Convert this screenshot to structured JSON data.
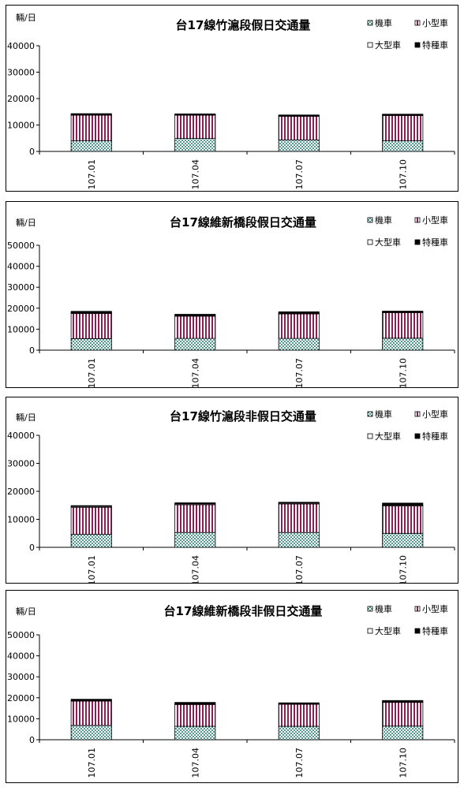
{
  "colors": {
    "motorcycle_fill": "#ffffff",
    "motorcycle_dots": "#1a7a6e",
    "small_car_fill": "#ffffff",
    "small_car_stripes": "#8a1f55",
    "large_car_fill": "#ffffff",
    "special_fill": "#000000"
  },
  "chart_data": [
    {
      "type": "bar",
      "stacked": true,
      "title": "台17線竹滬段假日交通量",
      "unit": "輛/日",
      "categories": [
        "107.01",
        "107.04",
        "107.07",
        "107.10"
      ],
      "ylim": [
        0,
        40000
      ],
      "yticks": [
        0,
        10000,
        20000,
        30000,
        40000
      ],
      "legend_position": "top-right",
      "series": [
        {
          "name": "機車",
          "values": [
            4000,
            4900,
            4300,
            4000
          ]
        },
        {
          "name": "小型車",
          "values": [
            9700,
            8800,
            9000,
            9600
          ]
        },
        {
          "name": "大型車",
          "values": [
            200,
            200,
            200,
            200
          ]
        },
        {
          "name": "特種車",
          "values": [
            400,
            300,
            300,
            300
          ]
        }
      ]
    },
    {
      "type": "bar",
      "stacked": true,
      "title": "台17線維新橋段假日交通量",
      "unit": "輛/日",
      "categories": [
        "107.01",
        "107.04",
        "107.07",
        "107.10"
      ],
      "ylim": [
        0,
        50000
      ],
      "yticks": [
        0,
        10000,
        20000,
        30000,
        40000,
        50000
      ],
      "legend_position": "top-right",
      "series": [
        {
          "name": "機車",
          "values": [
            5500,
            5600,
            5600,
            5700
          ]
        },
        {
          "name": "小型車",
          "values": [
            12000,
            10600,
            11700,
            12200
          ]
        },
        {
          "name": "大型車",
          "values": [
            300,
            300,
            300,
            300
          ]
        },
        {
          "name": "特種車",
          "values": [
            700,
            600,
            700,
            400
          ]
        }
      ]
    },
    {
      "type": "bar",
      "stacked": true,
      "title": "台17線竹滬段非假日交通量",
      "unit": "輛/日",
      "categories": [
        "107.01",
        "107.04",
        "107.07",
        "107.10"
      ],
      "ylim": [
        0,
        40000
      ],
      "yticks": [
        0,
        10000,
        20000,
        30000,
        40000
      ],
      "legend_position": "top-right",
      "series": [
        {
          "name": "機車",
          "values": [
            4600,
            5300,
            5300,
            5000
          ]
        },
        {
          "name": "小型車",
          "values": [
            9700,
            9900,
            10200,
            9800
          ]
        },
        {
          "name": "大型車",
          "values": [
            300,
            300,
            300,
            300
          ]
        },
        {
          "name": "特種車",
          "values": [
            300,
            400,
            300,
            700
          ]
        }
      ]
    },
    {
      "type": "bar",
      "stacked": true,
      "title": "台17線維新橋段非假日交通量",
      "unit": "輛/日",
      "categories": [
        "107.01",
        "107.04",
        "107.07",
        "107.10"
      ],
      "ylim": [
        0,
        50000
      ],
      "yticks": [
        0,
        10000,
        20000,
        30000,
        40000,
        50000
      ],
      "legend_position": "top-right",
      "series": [
        {
          "name": "機車",
          "values": [
            6800,
            6400,
            6400,
            6500
          ]
        },
        {
          "name": "小型車",
          "values": [
            11600,
            10400,
            10500,
            11300
          ]
        },
        {
          "name": "大型車",
          "values": [
            300,
            300,
            300,
            300
          ]
        },
        {
          "name": "特種車",
          "values": [
            600,
            700,
            400,
            600
          ]
        }
      ]
    }
  ]
}
